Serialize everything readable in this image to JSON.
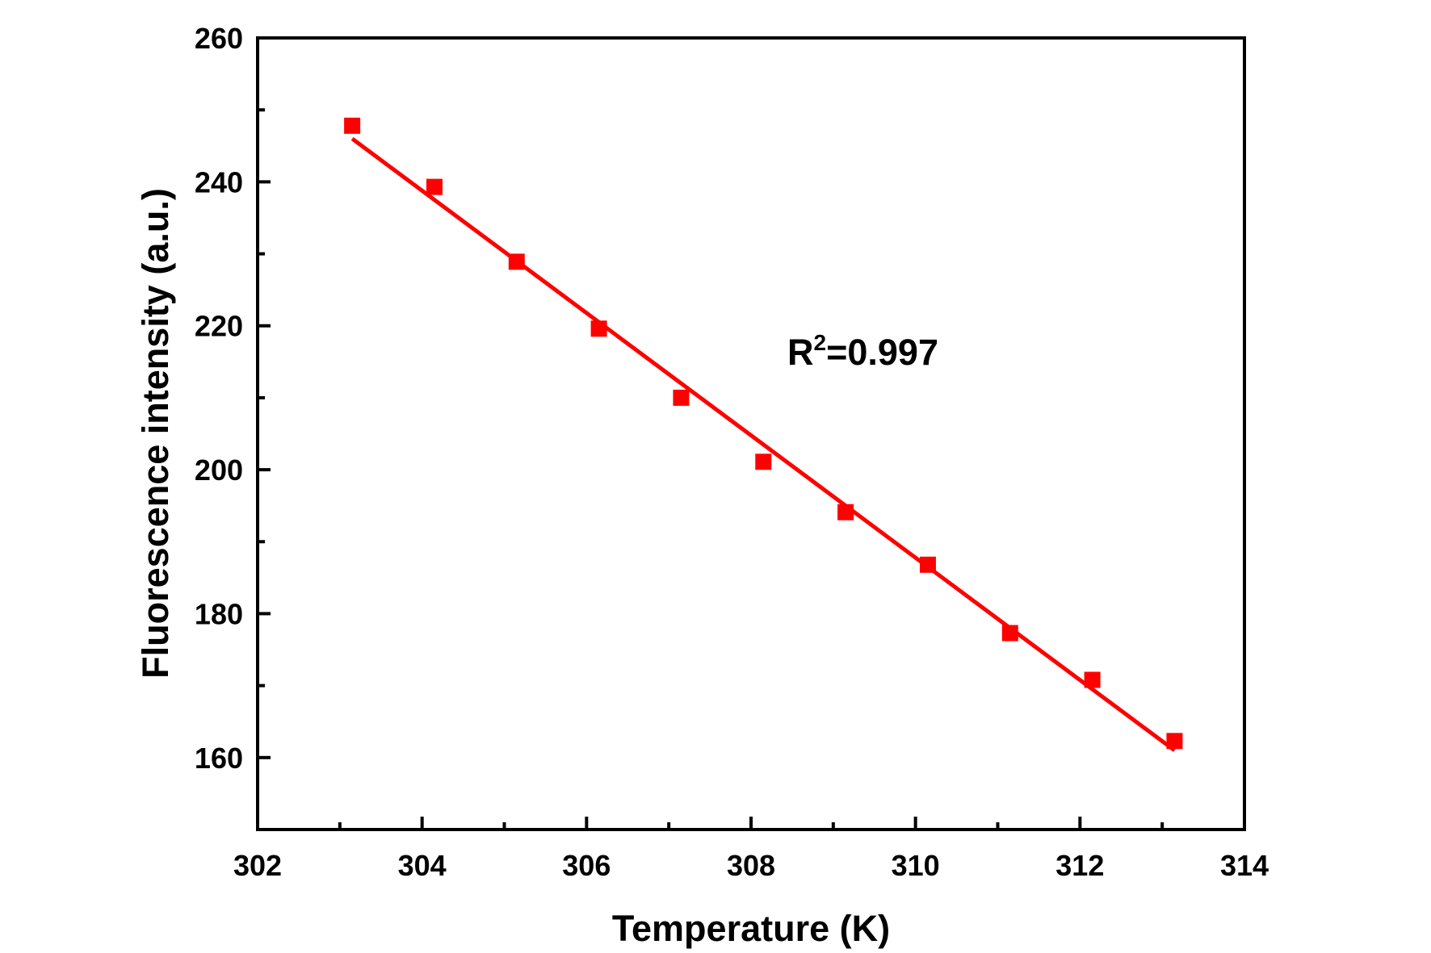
{
  "chart_data": {
    "type": "scatter",
    "xlabel": "Temperature (K)",
    "ylabel": "Fluorescence intensity (a.u.)",
    "xlim": [
      302,
      314
    ],
    "ylim": [
      150,
      260
    ],
    "x_ticks": [
      "302",
      "304",
      "306",
      "308",
      "310",
      "312",
      "314"
    ],
    "y_ticks": [
      "160",
      "180",
      "200",
      "220",
      "240",
      "260"
    ],
    "grid": false,
    "series": [
      {
        "marker": "square",
        "color": "#ff0000",
        "x": [
          303.15,
          304.15,
          305.15,
          306.15,
          307.15,
          308.15,
          309.15,
          310.15,
          311.15,
          312.15,
          313.15
        ],
        "y": [
          247.8,
          239.3,
          228.9,
          219.6,
          210.0,
          201.1,
          194.1,
          186.8,
          177.3,
          170.8,
          162.3
        ]
      }
    ],
    "fit_line": {
      "color": "#ff0000",
      "x": [
        303.15,
        313.15
      ],
      "y": [
        246.0,
        161.0
      ]
    },
    "annotation": {
      "prefix": "R",
      "superscript": "2",
      "value": "=0.997"
    }
  }
}
